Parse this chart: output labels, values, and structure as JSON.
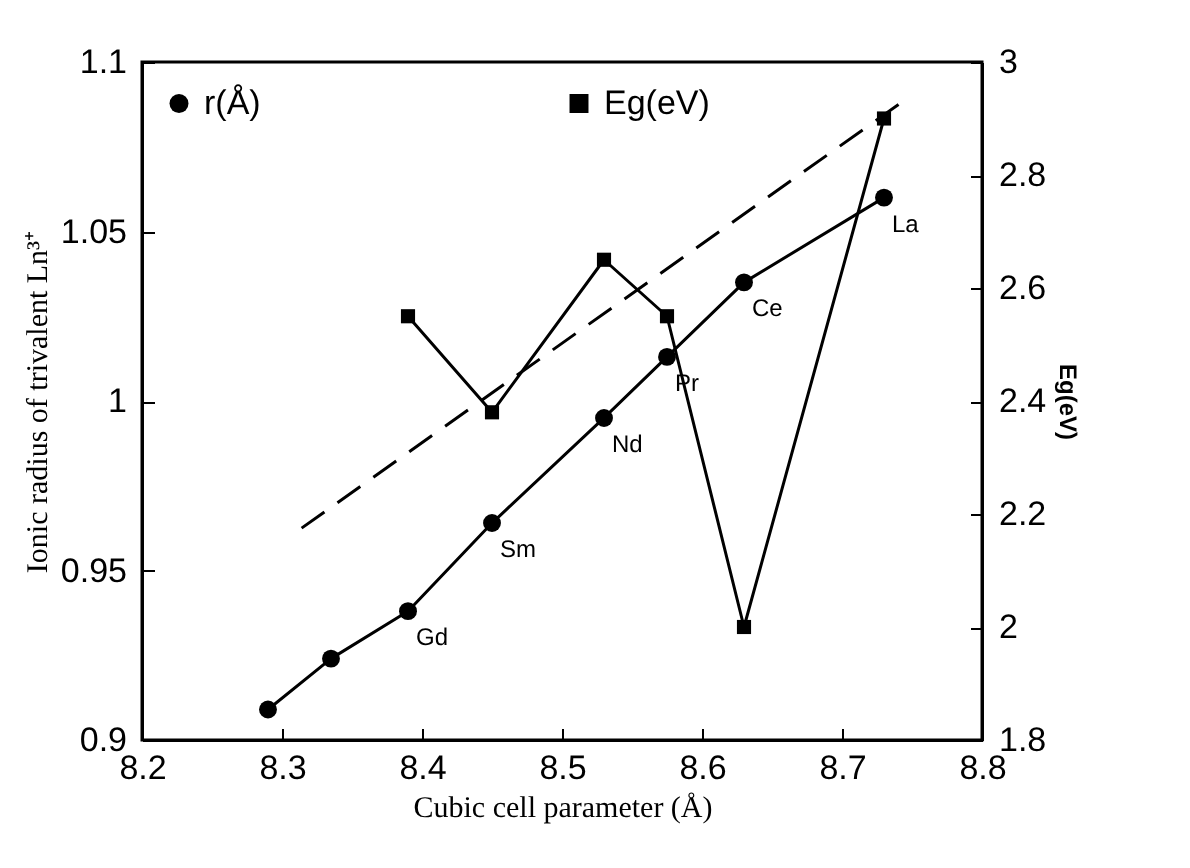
{
  "chart_data": {
    "type": "line",
    "xlabel": "Cubic cell parameter (Å)",
    "ylabel": "Ionic radius of trivalent Ln³⁺",
    "y2label": "Eg(eV)",
    "series": [
      {
        "name": "r(Å)",
        "color": "#000000",
        "marker": "circle",
        "x": [
          8.29,
          8.335,
          8.39,
          8.45,
          8.53,
          8.575,
          8.63,
          8.73
        ],
        "values": [
          0.909,
          0.924,
          0.938,
          0.964,
          0.995,
          1.013,
          1.035,
          1.06
        ]
      },
      {
        "name": "Eg(eV)",
        "color": "#000000",
        "marker": "square",
        "axis": "y2",
        "x": [
          8.39,
          8.45,
          8.53,
          8.575,
          8.63,
          8.73
        ],
        "values": [
          2.55,
          2.38,
          2.65,
          2.55,
          2.0,
          2.9
        ]
      },
      {
        "color": "#000000",
        "marker": "none",
        "line_style": "dashed",
        "axis": "y2",
        "x": [
          8.314,
          8.741
        ],
        "values": [
          2.175,
          2.926
        ]
      }
    ],
    "annotations": [
      {
        "text": "Gd",
        "x": 8.39,
        "y": 0.938
      },
      {
        "text": "Sm",
        "x": 8.45,
        "y": 0.964
      },
      {
        "text": "Nd",
        "x": 8.53,
        "y": 0.995
      },
      {
        "text": "Pr",
        "x": 8.575,
        "y": 1.013
      },
      {
        "text": "Ce",
        "x": 8.63,
        "y": 1.035
      },
      {
        "text": "La",
        "x": 8.73,
        "y": 1.06
      }
    ],
    "xlim": [
      8.2,
      8.8
    ],
    "xticks": [
      8.2,
      8.3,
      8.4,
      8.5,
      8.6,
      8.7,
      8.8
    ],
    "ylim": [
      0.9,
      1.1
    ],
    "yticks": [
      0.9,
      0.95,
      1,
      1.05,
      1.1
    ],
    "y2lim": [
      1.8,
      3
    ],
    "y2ticks": [
      1.8,
      2,
      2.2,
      2.4,
      2.6,
      2.8,
      3
    ],
    "grid": false,
    "legend": "top"
  }
}
